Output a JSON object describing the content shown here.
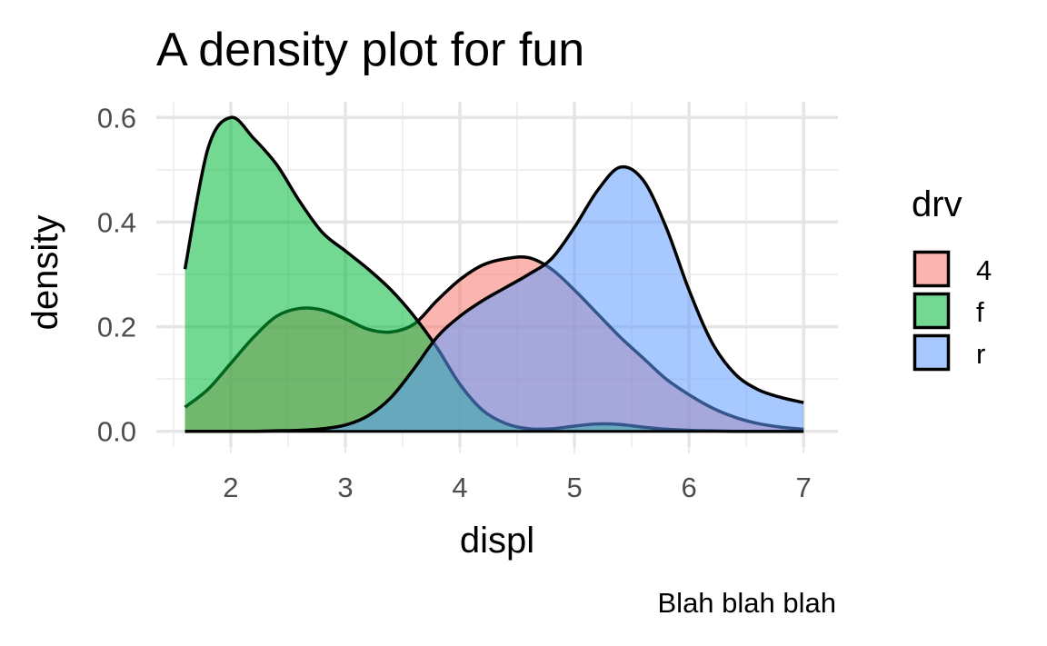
{
  "chart_data": {
    "type": "area",
    "title": "A density plot for fun",
    "xlabel": "displ",
    "ylabel": "density",
    "caption": "Blah blah blah",
    "xlim": [
      1.6,
      7.0
    ],
    "ylim": [
      0,
      0.6
    ],
    "x_ticks": [
      2,
      3,
      4,
      5,
      6,
      7
    ],
    "y_ticks": [
      0.0,
      0.2,
      0.4,
      0.6
    ],
    "y_tick_labels": [
      "0.0",
      "0.2",
      "0.4",
      "0.6"
    ],
    "grid": true,
    "legend": {
      "title": "drv",
      "position": "right"
    },
    "series": [
      {
        "name": "4",
        "color": "#F8766D",
        "x": [
          1.6,
          1.8,
          2.0,
          2.2,
          2.4,
          2.6,
          2.8,
          3.0,
          3.2,
          3.4,
          3.6,
          3.8,
          4.0,
          4.2,
          4.4,
          4.6,
          4.8,
          5.0,
          5.2,
          5.4,
          5.6,
          5.8,
          6.0,
          6.2,
          6.4,
          6.6,
          6.8,
          7.0
        ],
        "values": [
          0.046,
          0.08,
          0.13,
          0.18,
          0.22,
          0.235,
          0.232,
          0.215,
          0.195,
          0.19,
          0.205,
          0.25,
          0.29,
          0.318,
          0.33,
          0.332,
          0.31,
          0.27,
          0.225,
          0.18,
          0.14,
          0.1,
          0.07,
          0.045,
          0.027,
          0.015,
          0.008,
          0.004
        ]
      },
      {
        "name": "f",
        "color": "#00BA38",
        "x": [
          1.6,
          1.8,
          2.0,
          2.2,
          2.4,
          2.6,
          2.8,
          3.0,
          3.2,
          3.4,
          3.6,
          3.8,
          4.0,
          4.2,
          4.4,
          4.6,
          4.8,
          5.0,
          5.2,
          5.4,
          5.6,
          5.8,
          6.0,
          6.2,
          6.4,
          6.6,
          6.8,
          7.0
        ],
        "values": [
          0.31,
          0.54,
          0.6,
          0.56,
          0.51,
          0.44,
          0.38,
          0.345,
          0.31,
          0.27,
          0.22,
          0.16,
          0.09,
          0.04,
          0.015,
          0.005,
          0.005,
          0.01,
          0.014,
          0.013,
          0.008,
          0.004,
          0.002,
          0.001,
          0.0,
          0.0,
          0.0,
          0.0
        ]
      },
      {
        "name": "r",
        "color": "#619CFF",
        "x": [
          1.6,
          1.8,
          2.0,
          2.2,
          2.4,
          2.6,
          2.8,
          3.0,
          3.2,
          3.4,
          3.6,
          3.8,
          4.0,
          4.2,
          4.4,
          4.6,
          4.8,
          5.0,
          5.2,
          5.4,
          5.6,
          5.8,
          6.0,
          6.2,
          6.4,
          6.6,
          6.8,
          7.0
        ],
        "values": [
          0.0,
          0.0,
          0.0,
          0.0,
          0.001,
          0.002,
          0.005,
          0.012,
          0.03,
          0.065,
          0.12,
          0.18,
          0.22,
          0.25,
          0.275,
          0.3,
          0.33,
          0.39,
          0.46,
          0.505,
          0.48,
          0.39,
          0.27,
          0.17,
          0.11,
          0.08,
          0.065,
          0.055
        ]
      }
    ]
  }
}
